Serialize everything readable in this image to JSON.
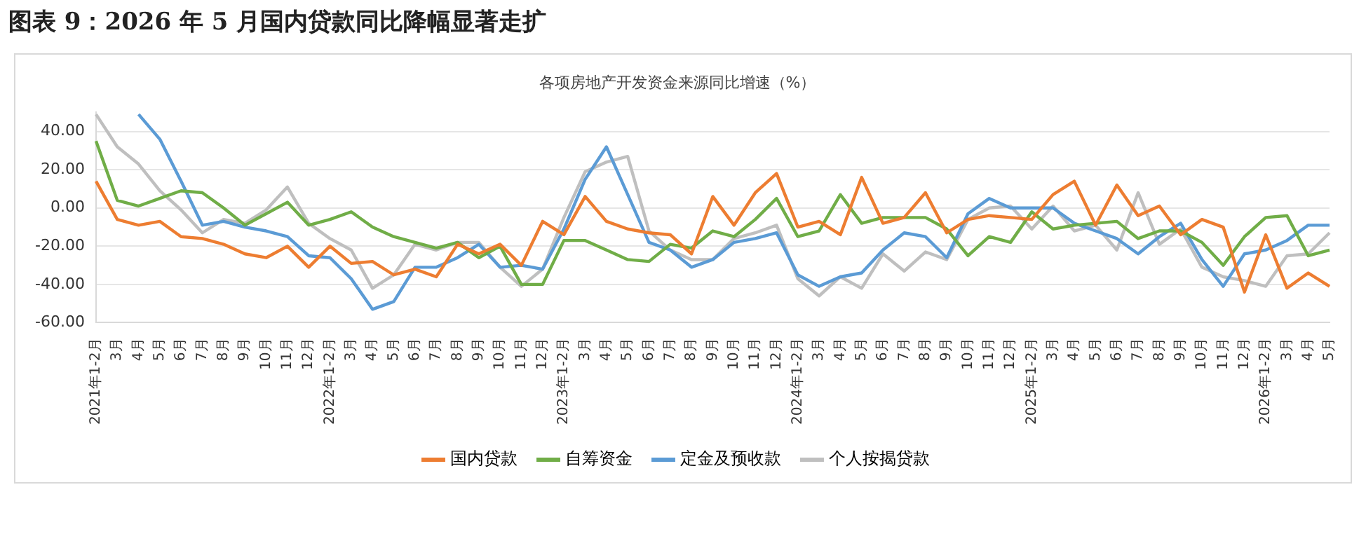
{
  "chart_data": {
    "type": "line",
    "title": "图表 9：2026 年 5 月国内贷款同比降幅显著走扩",
    "subtitle": "各项房地产开发资金来源同比增速（%）",
    "categories": [
      "2021年1-2月",
      "3月",
      "4月",
      "5月",
      "6月",
      "7月",
      "8月",
      "9月",
      "10月",
      "11月",
      "12月",
      "2022年1-2月",
      "3月",
      "4月",
      "5月",
      "6月",
      "7月",
      "8月",
      "9月",
      "10月",
      "11月",
      "12月",
      "2023年1-2月",
      "3月",
      "4月",
      "5月",
      "6月",
      "7月",
      "8月",
      "9月",
      "10月",
      "11月",
      "12月",
      "2024年1-2月",
      "3月",
      "4月",
      "5月",
      "6月",
      "7月",
      "8月",
      "9月",
      "10月",
      "11月",
      "12月",
      "2025年1-2月",
      "3月",
      "4月",
      "5月",
      "6月",
      "7月",
      "8月",
      "9月",
      "10月",
      "11月",
      "12月",
      "2026年1-2月",
      "3月",
      "4月",
      "5月"
    ],
    "series": [
      {
        "name": "国内贷款",
        "color": "#ed7d31",
        "values": [
          14,
          -6,
          -9,
          -7,
          -15,
          -16,
          -19,
          -24,
          -26,
          -20,
          -31,
          -20,
          -29,
          -28,
          -35,
          -32,
          -36,
          -19,
          -24,
          -19,
          -30,
          -7,
          -14,
          6,
          -7,
          -11,
          -13,
          -14,
          -24,
          6,
          -9,
          8,
          18,
          -10,
          -7,
          -14,
          16,
          -8,
          -5,
          8,
          -13,
          -6,
          -4,
          -5,
          -6,
          7,
          14,
          -9,
          12,
          -4,
          1,
          -14,
          -6,
          -10,
          -44,
          -14,
          -42,
          -34,
          -41
        ]
      },
      {
        "name": "自筹资金",
        "color": "#70ad47",
        "values": [
          35,
          4,
          1,
          5,
          9,
          8,
          0,
          -9,
          -3,
          3,
          -9,
          -6,
          -2,
          -10,
          -15,
          -18,
          -21,
          -18,
          -26,
          -20,
          -40,
          -40,
          -17,
          -17,
          -22,
          -27,
          -28,
          -19,
          -21,
          -12,
          -15,
          -6,
          5,
          -15,
          -12,
          7,
          -8,
          -5,
          -5,
          -5,
          -11,
          -25,
          -15,
          -18,
          -2,
          -11,
          -9,
          -8,
          -7,
          -16,
          -12,
          -12,
          -18,
          -30,
          -15,
          -5,
          -4,
          -25,
          -22
        ]
      },
      {
        "name": "定金及预收款",
        "color": "#5b9bd5",
        "values": [
          null,
          null,
          49,
          36,
          14,
          -9,
          -7,
          -10,
          -12,
          -15,
          -25,
          -26,
          -37,
          -53,
          -49,
          -31,
          -31,
          -26,
          -19,
          -31,
          -30,
          -32,
          -11,
          15,
          32,
          7,
          -18,
          -22,
          -31,
          -27,
          -18,
          -16,
          -13,
          -35,
          -41,
          -36,
          -34,
          -22,
          -13,
          -15,
          -26,
          -3,
          5,
          0,
          0,
          0,
          -8,
          -12,
          -16,
          -24,
          -15,
          -8,
          -27,
          -41,
          -24,
          -22,
          -17,
          -9,
          -9
        ]
      },
      {
        "name": "个人按揭贷款",
        "color": "#bfbfbf",
        "values": [
          49,
          32,
          23,
          9,
          -1,
          -13,
          -6,
          -8,
          -1,
          11,
          -8,
          -16,
          -22,
          -42,
          -35,
          -19,
          -22,
          -18,
          -18,
          -31,
          -41,
          -32,
          -5,
          19,
          24,
          27,
          -12,
          -22,
          -27,
          -27,
          -16,
          -13,
          -9,
          -37,
          -46,
          -36,
          -42,
          -24,
          -33,
          -23,
          -27,
          -6,
          0,
          1,
          -11,
          1,
          -12,
          -9,
          -22,
          8,
          -19,
          -11,
          -31,
          -36,
          -38,
          -41,
          -25,
          -24,
          -13
        ]
      }
    ],
    "ylim": [
      -60,
      50
    ],
    "yticks": [
      {
        "value": -60,
        "label": "-60.00"
      },
      {
        "value": -40,
        "label": "-40.00"
      },
      {
        "value": -20,
        "label": "-20.00"
      },
      {
        "value": 0,
        "label": "0.00"
      },
      {
        "value": 20,
        "label": "20.00"
      },
      {
        "value": 40,
        "label": "40.00"
      }
    ],
    "grid": "y",
    "legend": "bottom",
    "marker": "none",
    "line_style": "solid"
  }
}
